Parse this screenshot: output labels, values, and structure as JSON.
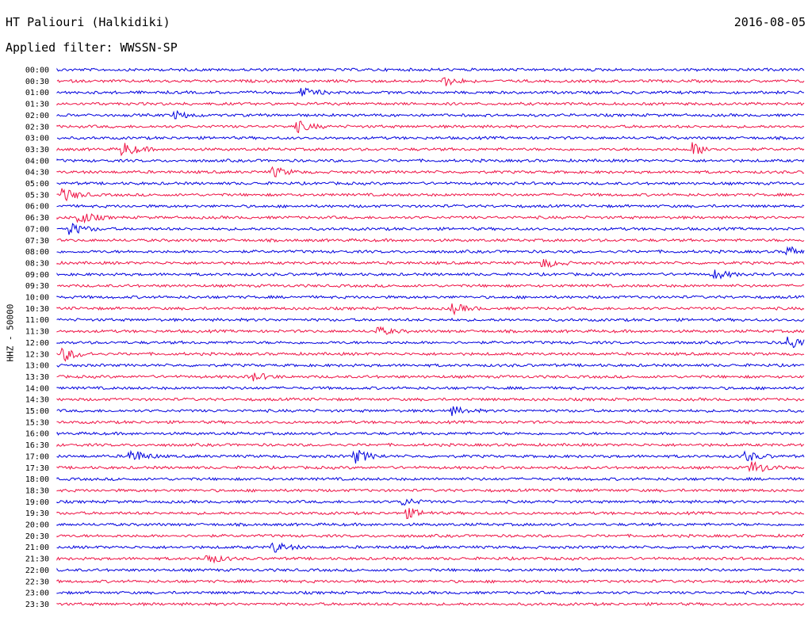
{
  "header": {
    "station": "HT Paliouri (Halkidiki)",
    "date": "2016-08-05",
    "filter": "Applied filter: WWSSN-SP"
  },
  "chart_data": {
    "type": "line",
    "title": "HT Paliouri (Halkidiki)",
    "ylabel": "HHZ - 50000",
    "colors": {
      "even": "#0000dd",
      "odd": "#ee1144"
    },
    "rows": [
      "00:00",
      "00:30",
      "01:00",
      "01:30",
      "02:00",
      "02:30",
      "03:00",
      "03:30",
      "04:00",
      "04:30",
      "05:00",
      "05:30",
      "06:00",
      "06:30",
      "07:00",
      "07:30",
      "08:00",
      "08:30",
      "09:00",
      "09:30",
      "10:00",
      "10:30",
      "11:00",
      "11:30",
      "12:00",
      "12:30",
      "13:00",
      "13:30",
      "14:00",
      "14:30",
      "15:00",
      "15:30",
      "16:00",
      "16:30",
      "17:00",
      "17:30",
      "18:00",
      "18:30",
      "19:00",
      "19:30",
      "20:00",
      "20:30",
      "21:00",
      "21:30",
      "22:00",
      "22:30",
      "23:00",
      "23:30"
    ],
    "events": [
      {
        "row": "00:30",
        "pos": 0.52,
        "amp": 0.6
      },
      {
        "row": "01:00",
        "pos": 0.33,
        "amp": 0.6
      },
      {
        "row": "02:00",
        "pos": 0.16,
        "amp": 0.5
      },
      {
        "row": "02:30",
        "pos": 0.32,
        "amp": 0.9
      },
      {
        "row": "03:30",
        "pos": 0.09,
        "amp": 1.0
      },
      {
        "row": "03:30",
        "pos": 0.85,
        "amp": 1.0
      },
      {
        "row": "04:30",
        "pos": 0.29,
        "amp": 0.7
      },
      {
        "row": "05:30",
        "pos": 0.01,
        "amp": 0.9
      },
      {
        "row": "06:30",
        "pos": 0.03,
        "amp": 1.0
      },
      {
        "row": "07:00",
        "pos": 0.02,
        "amp": 0.8
      },
      {
        "row": "08:00",
        "pos": 0.98,
        "amp": 0.7
      },
      {
        "row": "08:30",
        "pos": 0.65,
        "amp": 0.7
      },
      {
        "row": "09:00",
        "pos": 0.88,
        "amp": 0.7
      },
      {
        "row": "10:30",
        "pos": 0.53,
        "amp": 0.7
      },
      {
        "row": "11:30",
        "pos": 0.43,
        "amp": 0.6
      },
      {
        "row": "12:00",
        "pos": 0.98,
        "amp": 1.0
      },
      {
        "row": "12:30",
        "pos": 0.01,
        "amp": 1.0
      },
      {
        "row": "13:30",
        "pos": 0.26,
        "amp": 0.7
      },
      {
        "row": "15:00",
        "pos": 0.53,
        "amp": 0.6
      },
      {
        "row": "17:00",
        "pos": 0.1,
        "amp": 1.0
      },
      {
        "row": "17:00",
        "pos": 0.4,
        "amp": 1.0
      },
      {
        "row": "17:00",
        "pos": 0.92,
        "amp": 0.8
      },
      {
        "row": "17:30",
        "pos": 0.93,
        "amp": 1.0
      },
      {
        "row": "19:00",
        "pos": 0.46,
        "amp": 0.6
      },
      {
        "row": "19:30",
        "pos": 0.47,
        "amp": 0.7
      },
      {
        "row": "21:00",
        "pos": 0.29,
        "amp": 0.8
      },
      {
        "row": "21:30",
        "pos": 0.2,
        "amp": 0.8
      }
    ]
  }
}
